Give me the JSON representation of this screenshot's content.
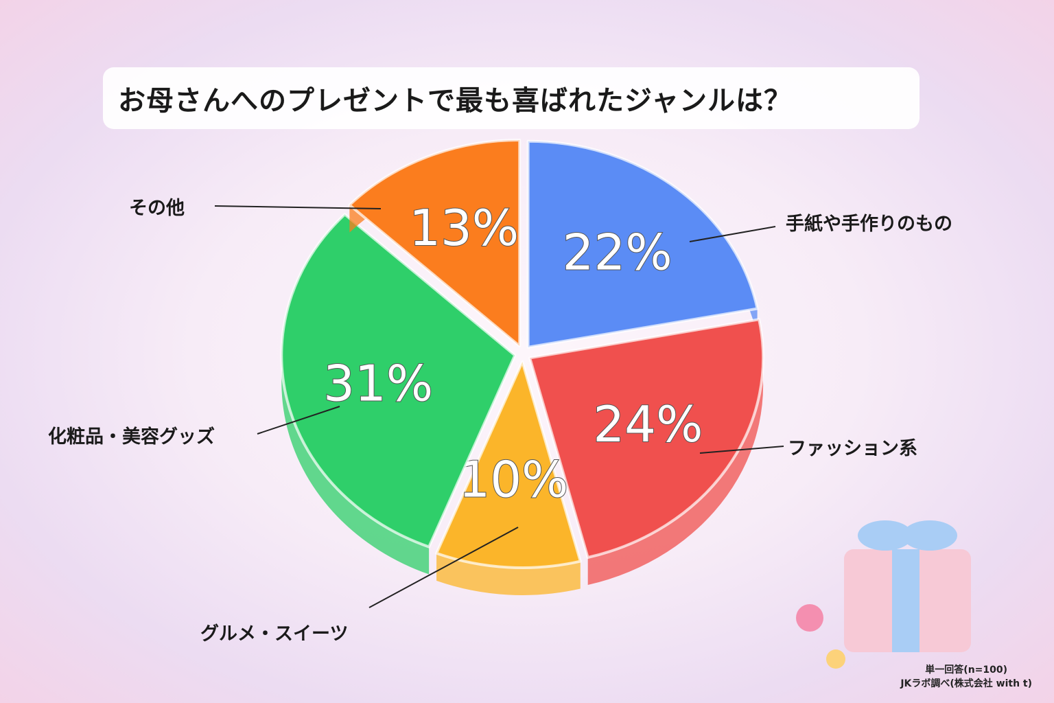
{
  "chart_data": {
    "type": "pie",
    "title": "お母さんへのプレゼントで最も喜ばれたジャンルは？",
    "categories": [
      "手紙や手作りのもの",
      "ファッション系",
      "グルメ・スイーツ",
      "化粧品・美容グッズ",
      "その他"
    ],
    "values": [
      22,
      24,
      10,
      31,
      13
    ],
    "value_labels": [
      "22%",
      "24%",
      "10%",
      "31%",
      "13%"
    ],
    "colors": [
      "#5b8cf5",
      "#f0504e",
      "#fbb52a",
      "#2fcf6a",
      "#fb7d1e"
    ],
    "start": "12 o'clock, clockwise",
    "legend": "none (leader-line labels)"
  },
  "footnote": {
    "line1": "単一回答(n=100)",
    "line2": "JKラボ調べ(株式会社 with t)"
  }
}
